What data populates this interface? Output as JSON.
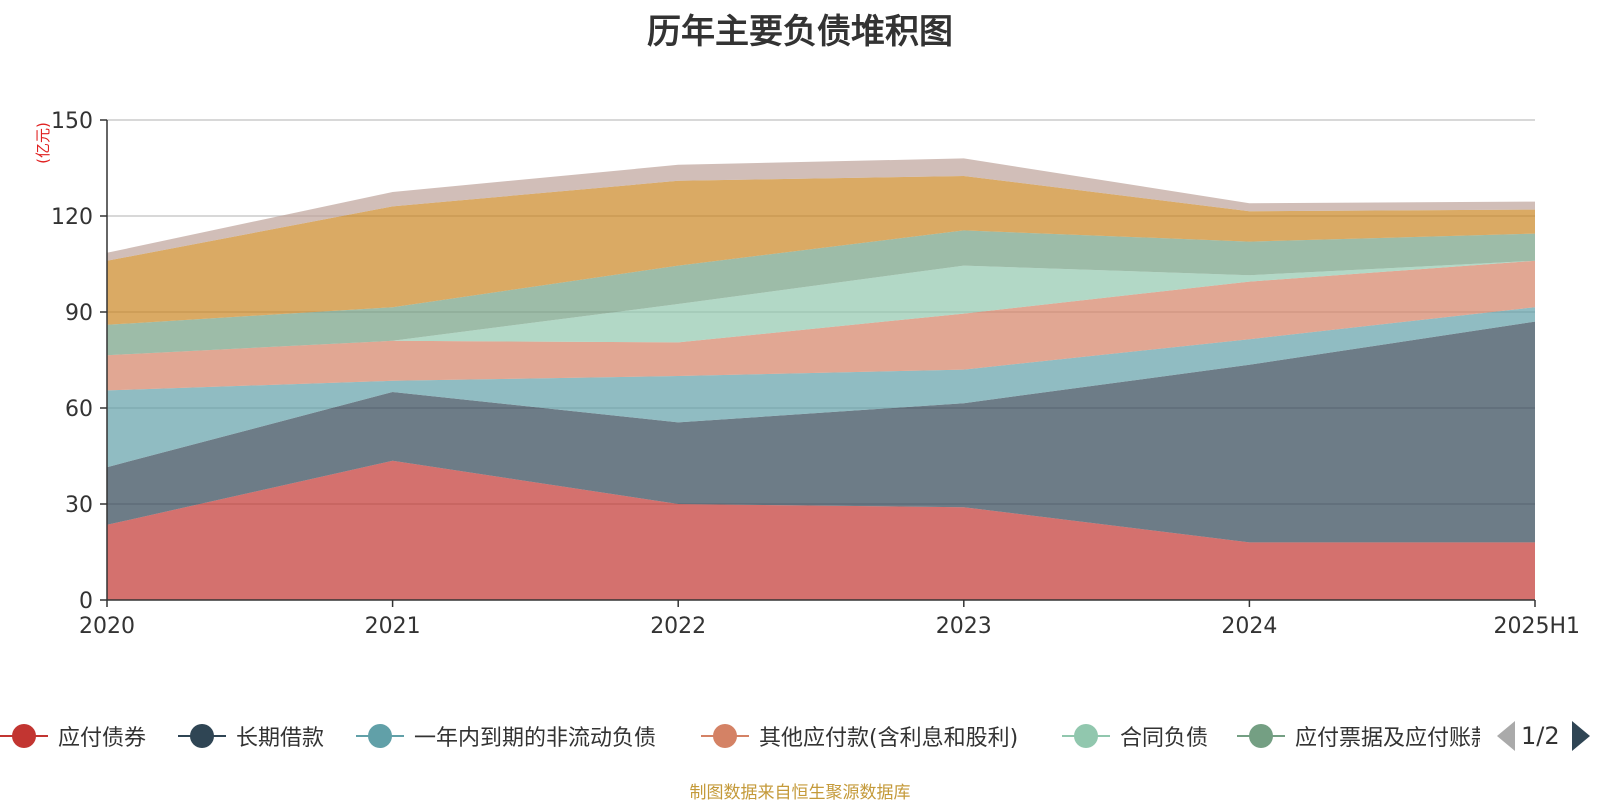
{
  "chart_data": {
    "type": "area",
    "stacked": true,
    "title": "历年主要负债堆积图",
    "y_unit_label": "(亿元)",
    "categories": [
      "2020",
      "2021",
      "2022",
      "2023",
      "2024",
      "2025H1"
    ],
    "ylim": [
      0,
      150
    ],
    "yticks": [
      0,
      30,
      60,
      90,
      120,
      150
    ],
    "grid": true,
    "legend_position": "bottom",
    "series": [
      {
        "name": "应付债券",
        "color": "#c23531",
        "values": [
          23.5,
          43.5,
          30.0,
          29.0,
          18.0,
          18.0
        ]
      },
      {
        "name": "长期借款",
        "color": "#2f4554",
        "values": [
          18.0,
          21.5,
          25.5,
          32.5,
          55.5,
          69.0
        ]
      },
      {
        "name": "一年内到期的非流动负债",
        "color": "#61a0a8",
        "values": [
          24.0,
          3.5,
          14.5,
          10.5,
          8.0,
          4.5
        ]
      },
      {
        "name": "其他应付款(含利息和股利)",
        "color": "#d48265",
        "values": [
          11.0,
          12.5,
          10.5,
          17.5,
          18.0,
          14.5
        ]
      },
      {
        "name": "合同负债",
        "color": "#91c7ae",
        "values": [
          0.0,
          0.0,
          12.0,
          15.0,
          2.0,
          0.0
        ]
      },
      {
        "name": "应付票据及应付账款",
        "color": "#749f83",
        "values": [
          9.5,
          10.5,
          12.0,
          11.0,
          10.5,
          8.5
        ]
      },
      {
        "color": "#ca8622",
        "values": [
          20.0,
          31.5,
          26.5,
          17.0,
          9.5,
          7.5
        ]
      },
      {
        "color": "#bda29a",
        "values": [
          2.5,
          4.5,
          5.0,
          5.5,
          2.5,
          2.5
        ]
      }
    ]
  },
  "legend": {
    "page_indicator": "1/2"
  },
  "source_note": "制图数据来自恒生聚源数据库"
}
